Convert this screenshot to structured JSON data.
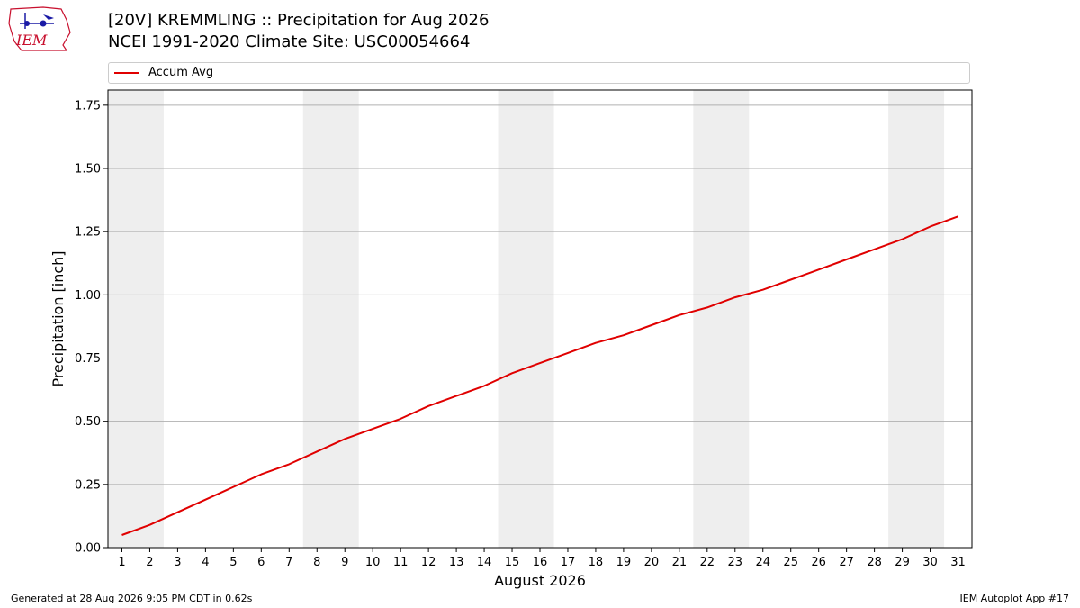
{
  "header": {
    "title_line1": "[20V] KREMMLING :: Precipitation for Aug 2026",
    "title_line2": "NCEI 1991-2020 Climate Site: USC00054664",
    "logo_text": "IEM"
  },
  "footer": {
    "generated": "Generated at 28 Aug 2026 9:05 PM CDT in 0.62s",
    "app": "IEM Autoplot App #17"
  },
  "colors": {
    "line": "#e00000",
    "weekend_band": "#eeeeee",
    "grid": "#b0b0b0",
    "logo_red": "#c8102e",
    "logo_blue": "#1a1aa6"
  },
  "chart_data": {
    "type": "line",
    "xlabel": "August 2026",
    "ylabel": "Precipitation [inch]",
    "xlim": [
      0.5,
      31.5
    ],
    "ylim": [
      0,
      1.81
    ],
    "yticks": [
      0.0,
      0.25,
      0.5,
      0.75,
      1.0,
      1.25,
      1.5,
      1.75
    ],
    "ytick_labels": [
      "0.00",
      "0.25",
      "0.50",
      "0.75",
      "1.00",
      "1.25",
      "1.50",
      "1.75"
    ],
    "x": [
      1,
      2,
      3,
      4,
      5,
      6,
      7,
      8,
      9,
      10,
      11,
      12,
      13,
      14,
      15,
      16,
      17,
      18,
      19,
      20,
      21,
      22,
      23,
      24,
      25,
      26,
      27,
      28,
      29,
      30,
      31
    ],
    "grid": "horizontal",
    "legend_position": "top",
    "weekend_bands": [
      [
        1,
        2
      ],
      [
        8,
        9
      ],
      [
        15,
        16
      ],
      [
        22,
        23
      ],
      [
        29,
        30
      ]
    ],
    "series": [
      {
        "name": "Accum Avg",
        "values": [
          0.05,
          0.09,
          0.14,
          0.19,
          0.24,
          0.29,
          0.33,
          0.38,
          0.43,
          0.47,
          0.51,
          0.56,
          0.6,
          0.64,
          0.69,
          0.73,
          0.77,
          0.81,
          0.84,
          0.88,
          0.92,
          0.95,
          0.99,
          1.02,
          1.06,
          1.1,
          1.14,
          1.18,
          1.22,
          1.27,
          1.31
        ]
      }
    ]
  }
}
